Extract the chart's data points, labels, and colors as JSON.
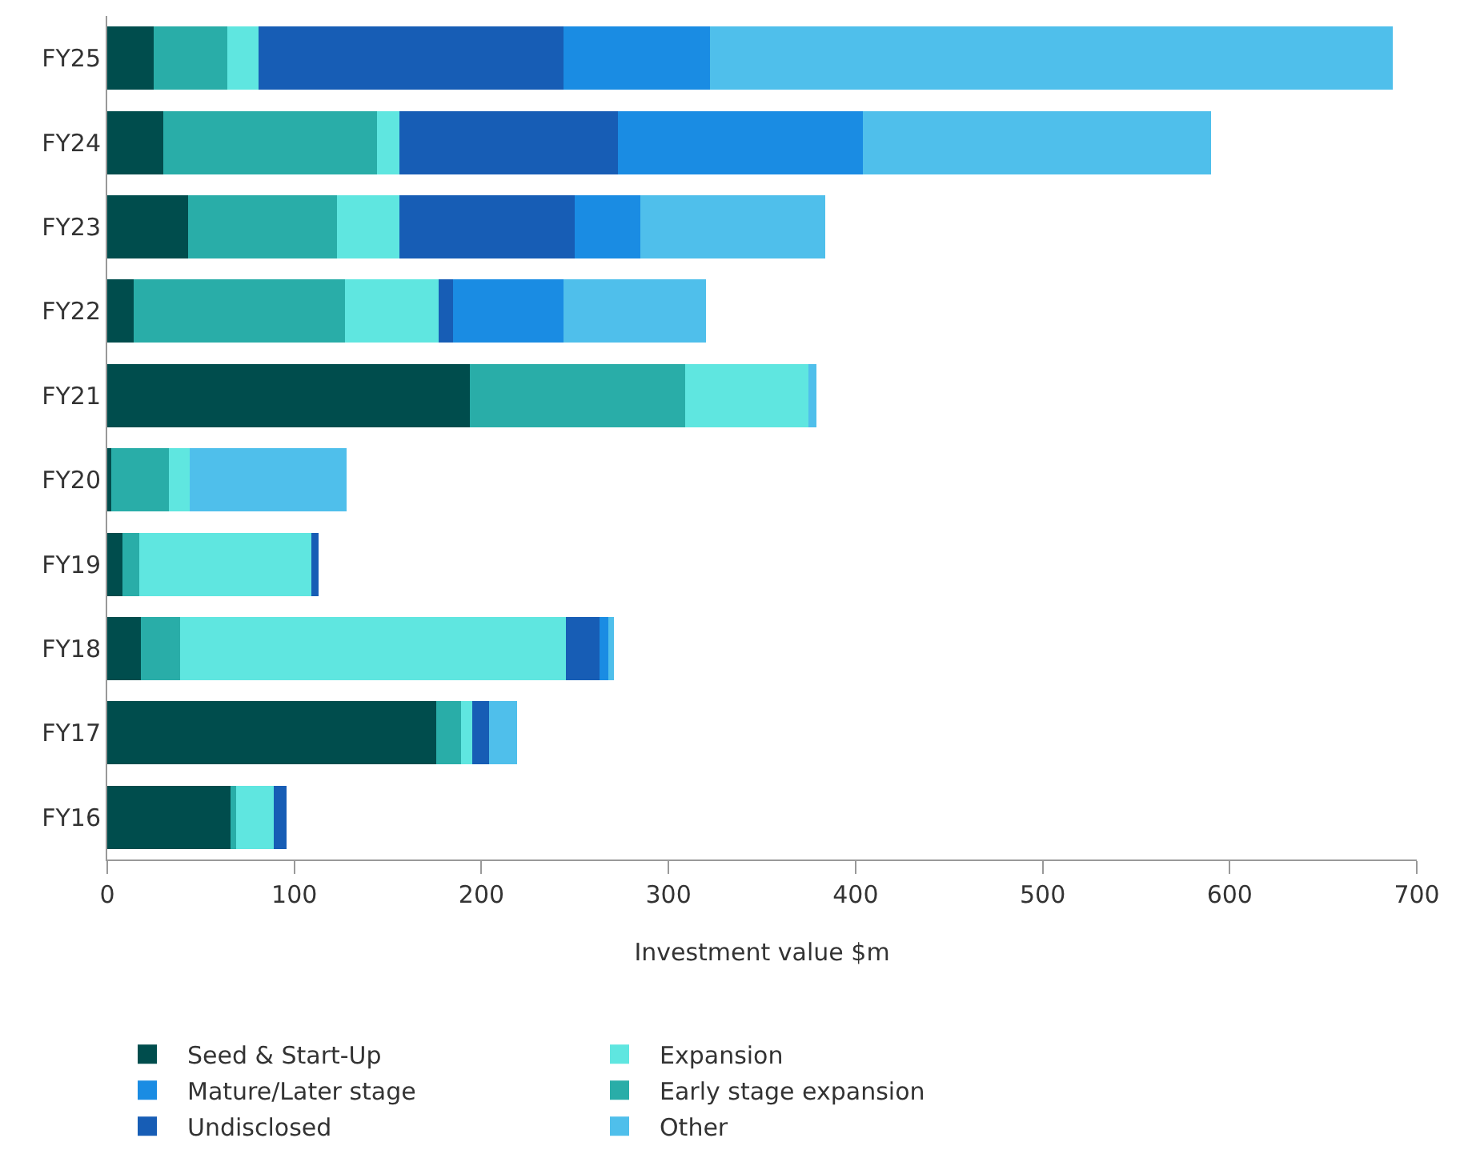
{
  "chart_data": {
    "type": "bar",
    "orientation": "horizontal",
    "stacked": true,
    "xlabel": "Investment value $m",
    "categories": [
      "FY25",
      "FY24",
      "FY23",
      "FY22",
      "FY21",
      "FY20",
      "FY19",
      "FY18",
      "FY17",
      "FY16"
    ],
    "xlim": [
      0,
      700
    ],
    "xticks": [
      0,
      100,
      200,
      300,
      400,
      500,
      600,
      700
    ],
    "grid": false,
    "legend": "bottom",
    "series": [
      {
        "name": "Seed & Start-Up",
        "color": "#004d4d",
        "values": [
          25,
          30,
          43,
          14,
          194,
          2,
          8,
          18,
          176,
          66
        ]
      },
      {
        "name": "Early stage expansion",
        "color": "#29ada8",
        "values": [
          39,
          114,
          80,
          113,
          115,
          31,
          9,
          21,
          13,
          3
        ]
      },
      {
        "name": "Expansion",
        "color": "#5fe6e0",
        "values": [
          17,
          12,
          33,
          50,
          66,
          11,
          92,
          206,
          6,
          20
        ]
      },
      {
        "name": "Undisclosed",
        "color": "#175db5",
        "values": [
          163,
          117,
          94,
          8,
          0,
          0,
          4,
          18,
          9,
          7
        ]
      },
      {
        "name": "Mature/Later stage",
        "color": "#1a8ce3",
        "values": [
          78,
          131,
          35,
          59,
          0,
          0,
          0,
          5,
          0,
          0
        ]
      },
      {
        "name": "Other",
        "color": "#4fbfeb",
        "values": [
          365,
          186,
          99,
          76,
          4,
          84,
          0,
          3,
          15,
          0
        ]
      }
    ]
  }
}
